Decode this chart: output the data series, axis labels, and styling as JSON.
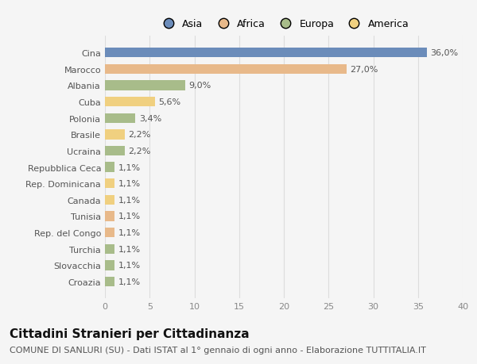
{
  "categories": [
    "Croazia",
    "Slovacchia",
    "Turchia",
    "Rep. del Congo",
    "Tunisia",
    "Canada",
    "Rep. Dominicana",
    "Repubblica Ceca",
    "Ucraina",
    "Brasile",
    "Polonia",
    "Cuba",
    "Albania",
    "Marocco",
    "Cina"
  ],
  "values": [
    1.1,
    1.1,
    1.1,
    1.1,
    1.1,
    1.1,
    1.1,
    1.1,
    2.2,
    2.2,
    3.4,
    5.6,
    9.0,
    27.0,
    36.0
  ],
  "labels": [
    "1,1%",
    "1,1%",
    "1,1%",
    "1,1%",
    "1,1%",
    "1,1%",
    "1,1%",
    "1,1%",
    "2,2%",
    "2,2%",
    "3,4%",
    "5,6%",
    "9,0%",
    "27,0%",
    "36,0%"
  ],
  "colors": [
    "#a8bc8a",
    "#a8bc8a",
    "#a8bc8a",
    "#e8b98a",
    "#e8b98a",
    "#f0d080",
    "#f0d080",
    "#a8bc8a",
    "#a8bc8a",
    "#f0d080",
    "#a8bc8a",
    "#f0d080",
    "#a8bc8a",
    "#e8b98a",
    "#6b8cba"
  ],
  "continent_colors": {
    "Asia": "#6b8cba",
    "Africa": "#e8b98a",
    "Europa": "#a8bc8a",
    "America": "#f0d080"
  },
  "xlim": [
    0,
    40
  ],
  "xticks": [
    0,
    5,
    10,
    15,
    20,
    25,
    30,
    35,
    40
  ],
  "title": "Cittadini Stranieri per Cittadinanza",
  "subtitle": "COMUNE DI SANLURI (SU) - Dati ISTAT al 1° gennaio di ogni anno - Elaborazione TUTTITALIA.IT",
  "bg_color": "#f5f5f5",
  "grid_color": "#dddddd",
  "bar_height": 0.6,
  "title_fontsize": 11,
  "subtitle_fontsize": 8,
  "label_fontsize": 8,
  "tick_fontsize": 8,
  "legend_fontsize": 9
}
